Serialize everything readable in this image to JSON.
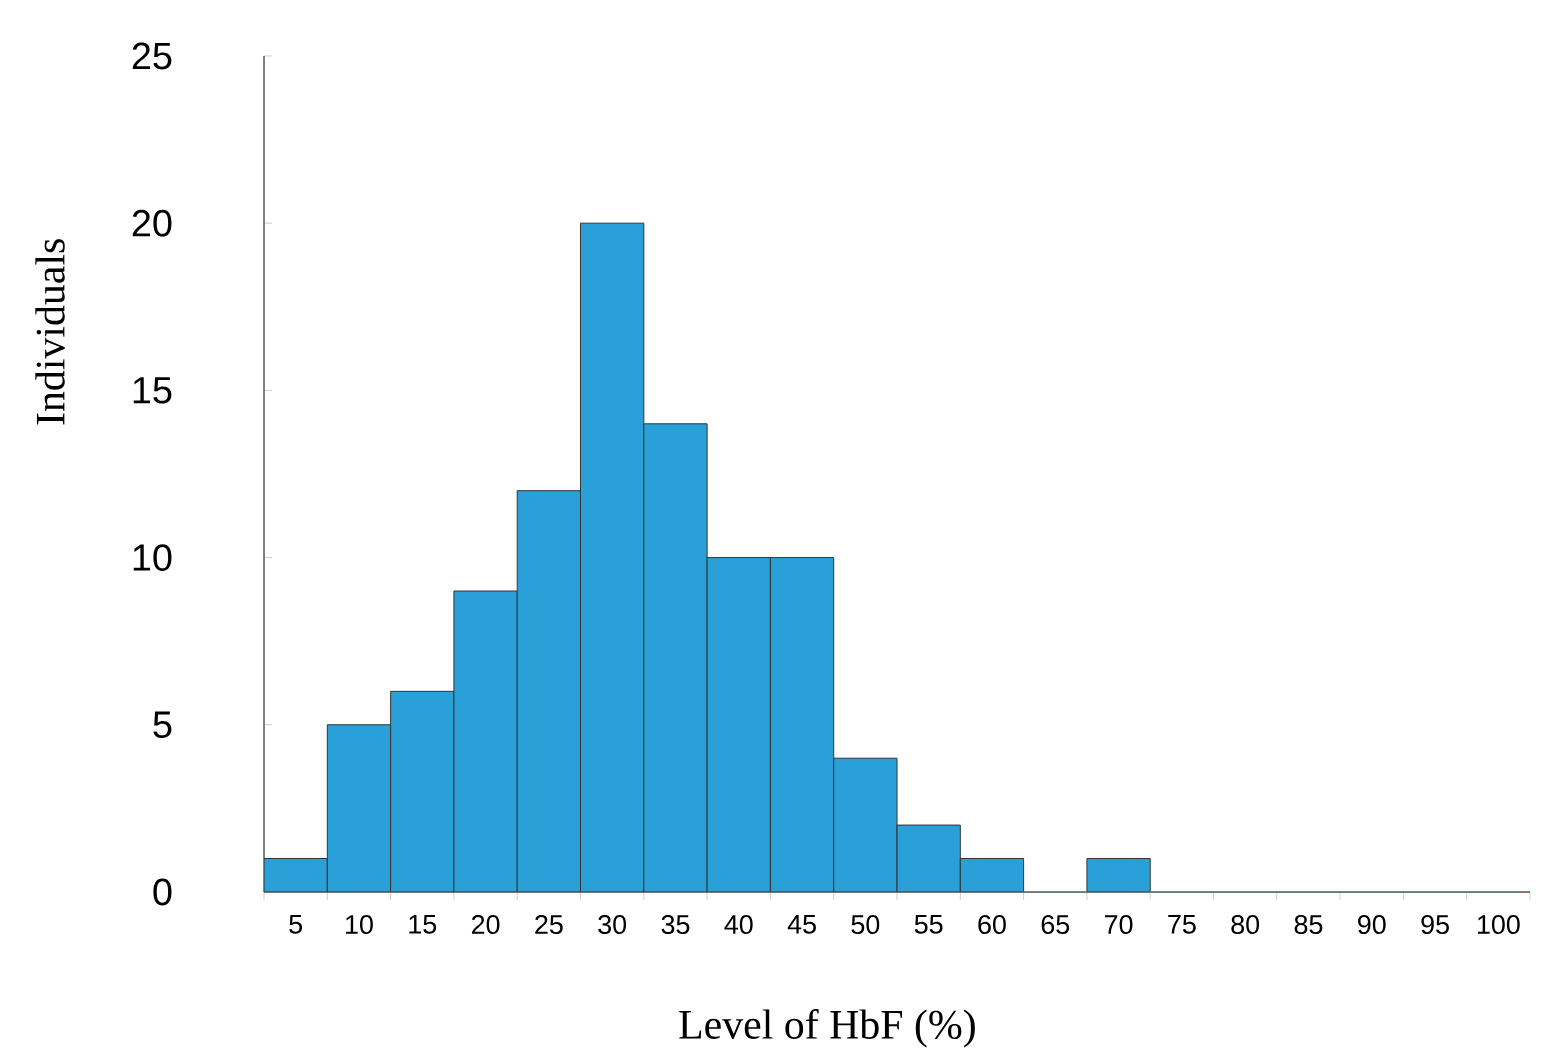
{
  "chart_data": {
    "type": "bar",
    "xlabel": "Level of HbF (%)",
    "ylabel": "Individuals",
    "categories": [
      "5",
      "10",
      "15",
      "20",
      "25",
      "30",
      "35",
      "40",
      "45",
      "50",
      "55",
      "60",
      "65",
      "70",
      "75",
      "80",
      "85",
      "90",
      "95",
      "100"
    ],
    "values": [
      1,
      5,
      6,
      9,
      12,
      20,
      14,
      10,
      10,
      4,
      2,
      1,
      0,
      1,
      0,
      0,
      0,
      0,
      0,
      0
    ],
    "color": "#2aa0d8",
    "ylim": [
      0,
      25
    ],
    "yticks": [
      0,
      5,
      10,
      15,
      20,
      25
    ],
    "grid": false
  }
}
